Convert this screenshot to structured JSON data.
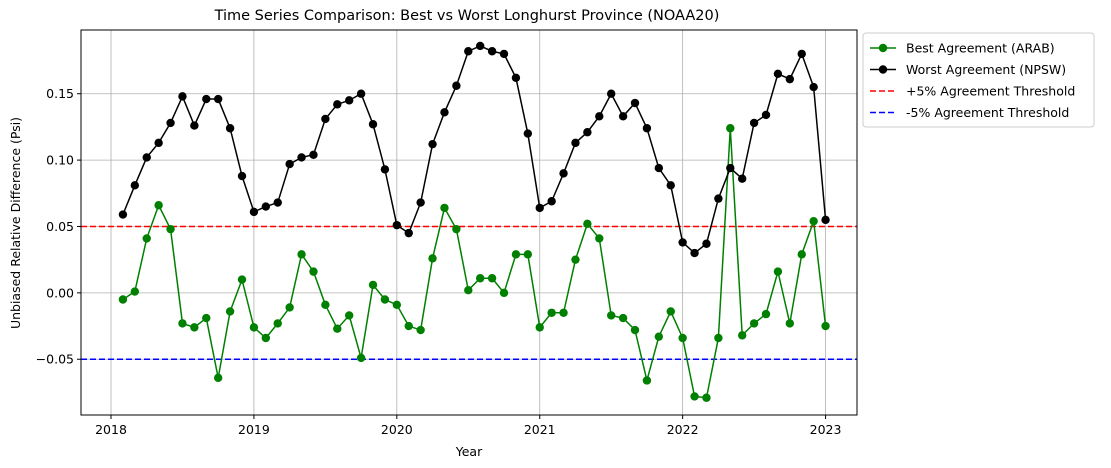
{
  "chart_data": {
    "type": "line",
    "title": "Time Series Comparison: Best vs Worst Longhurst Province (NOAA20)",
    "xlabel": "Year",
    "ylabel": "Unbiased Relative Difference (Psi)",
    "xlim": [
      2017.79,
      2023.22
    ],
    "ylim": [
      -0.092,
      0.198
    ],
    "xticks": [
      2018,
      2019,
      2020,
      2021,
      2022,
      2023
    ],
    "yticks": [
      -0.05,
      0.0,
      0.05,
      0.1,
      0.15
    ],
    "ytick_labels": [
      "−0.05",
      "0.00",
      "0.05",
      "0.10",
      "0.15"
    ],
    "grid": true,
    "legend_position": "outside-top-right",
    "x": [
      "2018-01",
      "2018-02",
      "2018-03",
      "2018-04",
      "2018-05",
      "2018-06",
      "2018-07",
      "2018-08",
      "2018-09",
      "2018-10",
      "2018-11",
      "2018-12",
      "2019-01",
      "2019-02",
      "2019-03",
      "2019-04",
      "2019-05",
      "2019-06",
      "2019-07",
      "2019-08",
      "2019-09",
      "2019-10",
      "2019-11",
      "2019-12",
      "2020-01",
      "2020-02",
      "2020-03",
      "2020-04",
      "2020-05",
      "2020-06",
      "2020-07",
      "2020-08",
      "2020-09",
      "2020-10",
      "2020-11",
      "2020-12",
      "2021-01",
      "2021-02",
      "2021-03",
      "2021-04",
      "2021-05",
      "2021-06",
      "2021-07",
      "2021-08",
      "2021-09",
      "2021-10",
      "2021-11",
      "2021-12",
      "2022-01",
      "2022-02",
      "2022-03",
      "2022-04",
      "2022-05",
      "2022-06",
      "2022-07",
      "2022-08",
      "2022-09",
      "2022-10",
      "2022-11",
      "2022-12"
    ],
    "series": [
      {
        "name": "Best Agreement (ARAB)",
        "color": "#008000",
        "values": [
          -0.005,
          0.001,
          0.041,
          0.066,
          0.048,
          -0.023,
          -0.026,
          -0.019,
          -0.064,
          -0.014,
          0.01,
          -0.026,
          -0.034,
          -0.023,
          -0.011,
          0.029,
          0.016,
          -0.009,
          -0.027,
          -0.017,
          -0.049,
          0.006,
          -0.005,
          -0.009,
          -0.025,
          -0.028,
          0.026,
          0.064,
          0.048,
          0.002,
          0.011,
          0.011,
          0.0,
          0.029,
          0.029,
          -0.026,
          -0.015,
          -0.015,
          0.025,
          0.052,
          0.041,
          -0.017,
          -0.019,
          -0.028,
          -0.066,
          -0.033,
          -0.014,
          -0.034,
          -0.078,
          -0.079,
          -0.034,
          0.124,
          -0.032,
          -0.023,
          -0.016,
          0.016,
          -0.023,
          0.029,
          0.054,
          -0.025
        ]
      },
      {
        "name": "Worst Agreement (NPSW)",
        "color": "#000000",
        "values": [
          0.059,
          0.081,
          0.102,
          0.113,
          0.128,
          0.148,
          0.126,
          0.146,
          0.146,
          0.124,
          0.088,
          0.061,
          0.065,
          0.068,
          0.097,
          0.102,
          0.104,
          0.131,
          0.142,
          0.145,
          0.15,
          0.127,
          0.093,
          0.051,
          0.045,
          0.068,
          0.112,
          0.136,
          0.156,
          0.182,
          0.186,
          0.182,
          0.18,
          0.162,
          0.12,
          0.064,
          0.069,
          0.09,
          0.113,
          0.121,
          0.133,
          0.15,
          0.133,
          0.143,
          0.124,
          0.094,
          0.081,
          0.038,
          0.03,
          0.037,
          0.071,
          0.094,
          0.086,
          0.128,
          0.134,
          0.165,
          0.161,
          0.18,
          0.155,
          0.055
        ]
      }
    ],
    "thresholds": [
      {
        "name": "+5% Agreement Threshold",
        "value": 0.05,
        "color": "#ff0000"
      },
      {
        "name": "-5% Agreement Threshold",
        "value": -0.05,
        "color": "#0000ff"
      }
    ]
  }
}
